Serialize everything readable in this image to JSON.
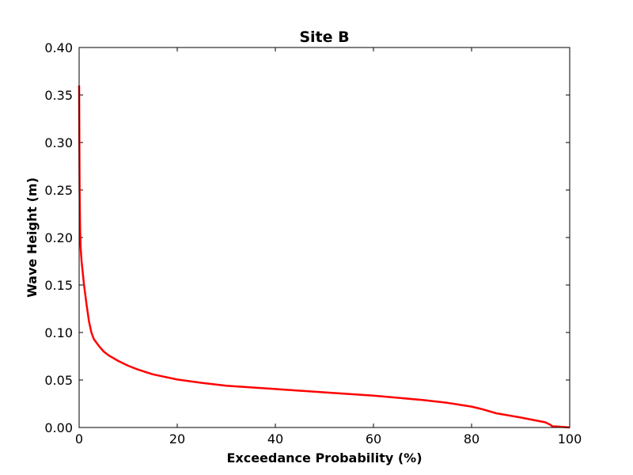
{
  "chart_data": {
    "type": "line",
    "title": "Site B",
    "xlabel": "Exceedance Probability (%)",
    "ylabel": "Wave Height (m)",
    "xlim": [
      0,
      100
    ],
    "ylim": [
      0,
      0.4
    ],
    "xticks": [
      0,
      20,
      40,
      60,
      80,
      100
    ],
    "xtick_labels": [
      "0",
      "20",
      "40",
      "60",
      "80",
      "100"
    ],
    "yticks": [
      0,
      0.05,
      0.1,
      0.15,
      0.2,
      0.25,
      0.3,
      0.35,
      0.4
    ],
    "ytick_labels": [
      "0.00",
      "0.05",
      "0.10",
      "0.15",
      "0.20",
      "0.25",
      "0.30",
      "0.35",
      "0.40"
    ],
    "grid": false,
    "legend": false,
    "series": [
      {
        "color": "#ff0000",
        "x": [
          0.0,
          0.05,
          0.1,
          0.2,
          0.3,
          0.5,
          0.8,
          1.0,
          1.5,
          2.0,
          2.5,
          3.0,
          4.0,
          5.0,
          6.0,
          8.0,
          10.0,
          12.0,
          15.0,
          20.0,
          25.0,
          30.0,
          40.0,
          50.0,
          60.0,
          70.0,
          75.0,
          80.0,
          82.0,
          85.0,
          90.0,
          93.0,
          95.0,
          96.0,
          96.5,
          98.0,
          100.0
        ],
        "y": [
          0.36,
          0.3,
          0.25,
          0.21,
          0.19,
          0.175,
          0.16,
          0.15,
          0.13,
          0.112,
          0.1,
          0.093,
          0.086,
          0.08,
          0.076,
          0.07,
          0.065,
          0.061,
          0.056,
          0.0505,
          0.047,
          0.044,
          0.0405,
          0.037,
          0.0335,
          0.029,
          0.026,
          0.022,
          0.0195,
          0.015,
          0.0105,
          0.0075,
          0.0055,
          0.003,
          0.0012,
          0.0008,
          0.0
        ]
      }
    ]
  }
}
